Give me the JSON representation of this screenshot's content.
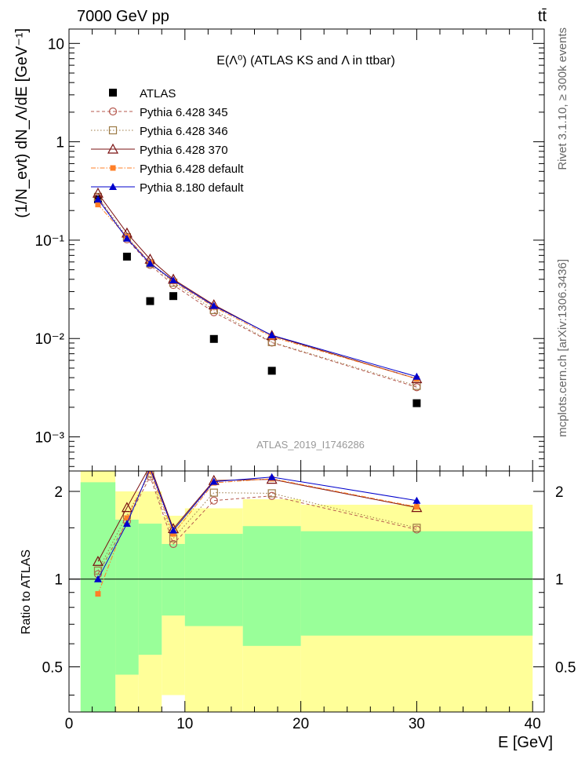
{
  "header": {
    "energy": "7000 GeV pp",
    "process": "tt̄"
  },
  "side": {
    "rivet": "Rivet 3.1.10, ≥ 300k events",
    "mcplots": "mcplots.cern.ch [arXiv:1306.3436]"
  },
  "plot_title": "E(Λ⁰) (ATLAS KS and Λ in ttbar)",
  "analysis_id": "ATLAS_2019_I1746286",
  "colors": {
    "atlas": "#000000",
    "p345": "#b5584e",
    "p346": "#9c7a45",
    "p370": "#7a1010",
    "p6def": "#ff7f27",
    "p8": "#0000cc",
    "band_inner": "#99ff99",
    "band_outer": "#ffff99"
  },
  "chart_data": [
    {
      "type": "scatter",
      "ylabel": "(1/N_evt) dN_Λ/dE [GeV⁻¹]",
      "yscale": "log",
      "ylim": [
        0.00045,
        14
      ],
      "xlim": [
        0,
        41
      ],
      "ytick_labels": [
        "10⁻³",
        "10⁻²",
        "10⁻¹",
        "1",
        "10"
      ],
      "legend_position": "top-left",
      "x": [
        2.5,
        5,
        7,
        9,
        12.5,
        17.5,
        30
      ],
      "series": [
        {
          "name": "ATLAS",
          "marker": "square-filled",
          "values": [
            0.26,
            0.068,
            0.024,
            0.027,
            0.0099,
            0.0047,
            0.0022
          ]
        },
        {
          "name": "Pythia 6.428 345",
          "marker": "circle-open",
          "line": "dashed",
          "values": [
            0.27,
            0.102,
            0.056,
            0.035,
            0.0185,
            0.0091,
            0.0032
          ]
        },
        {
          "name": "Pythia 6.428 346",
          "marker": "square-open",
          "line": "dotted",
          "values": [
            0.275,
            0.107,
            0.058,
            0.037,
            0.0195,
            0.0092,
            0.0033
          ]
        },
        {
          "name": "Pythia 6.428 370",
          "marker": "triangle-open",
          "line": "solid",
          "values": [
            0.3,
            0.118,
            0.064,
            0.04,
            0.022,
            0.0107,
            0.0039
          ]
        },
        {
          "name": "Pythia 6.428 default",
          "marker": "square-filled-small",
          "line": "dashdot",
          "values": [
            0.23,
            0.108,
            0.059,
            0.038,
            0.021,
            0.0104,
            0.0039
          ]
        },
        {
          "name": "Pythia 8.180 default",
          "marker": "triangle-filled",
          "line": "solid",
          "values": [
            0.26,
            0.104,
            0.058,
            0.039,
            0.0215,
            0.0108,
            0.0041
          ]
        }
      ]
    },
    {
      "type": "scatter",
      "ylabel": "Ratio to ATLAS",
      "xlabel": "E [GeV]",
      "yscale": "log",
      "ylim": [
        0.35,
        2.35
      ],
      "xlim": [
        0,
        41
      ],
      "xtick_labels": [
        "0",
        "10",
        "20",
        "30",
        "40"
      ],
      "ytick_labels": [
        "0.5",
        "1",
        "2"
      ],
      "reference_line": 1,
      "x": [
        2.5,
        5,
        7,
        9,
        12.5,
        17.5,
        30
      ],
      "bins": [
        {
          "lo": 1,
          "hi": 4,
          "inner": [
            0.35,
            2.15
          ],
          "outer": [
            0.35,
            2.35
          ]
        },
        {
          "lo": 4,
          "hi": 6,
          "inner": [
            0.47,
            1.6
          ],
          "outer": [
            0.35,
            2.0
          ]
        },
        {
          "lo": 6,
          "hi": 8,
          "inner": [
            0.55,
            1.55
          ],
          "outer": [
            0.35,
            2.0
          ]
        },
        {
          "lo": 8,
          "hi": 10,
          "inner": [
            0.75,
            1.32
          ],
          "outer": [
            0.4,
            1.65
          ]
        },
        {
          "lo": 10,
          "hi": 15,
          "inner": [
            0.69,
            1.43
          ],
          "outer": [
            0.35,
            1.75
          ]
        },
        {
          "lo": 15,
          "hi": 20,
          "inner": [
            0.59,
            1.52
          ],
          "outer": [
            0.35,
            1.88
          ]
        },
        {
          "lo": 20,
          "hi": 40,
          "inner": [
            0.64,
            1.46
          ],
          "outer": [
            0.35,
            1.8
          ]
        }
      ],
      "series": [
        {
          "name": "Pythia 6.428 345",
          "values": [
            1.04,
            1.58,
            2.25,
            1.32,
            1.86,
            1.93,
            1.48
          ]
        },
        {
          "name": "Pythia 6.428 346",
          "values": [
            1.07,
            1.66,
            2.3,
            1.38,
            1.98,
            1.97,
            1.5
          ]
        },
        {
          "name": "Pythia 6.428 370",
          "values": [
            1.15,
            1.76,
            2.45,
            1.49,
            2.18,
            2.2,
            1.76
          ]
        },
        {
          "name": "Pythia 6.428 default",
          "values": [
            0.89,
            1.62,
            2.35,
            1.43,
            2.14,
            2.21,
            1.77
          ]
        },
        {
          "name": "Pythia 8.180 default",
          "values": [
            1.0,
            1.55,
            2.4,
            1.47,
            2.16,
            2.24,
            1.86
          ]
        }
      ]
    }
  ]
}
